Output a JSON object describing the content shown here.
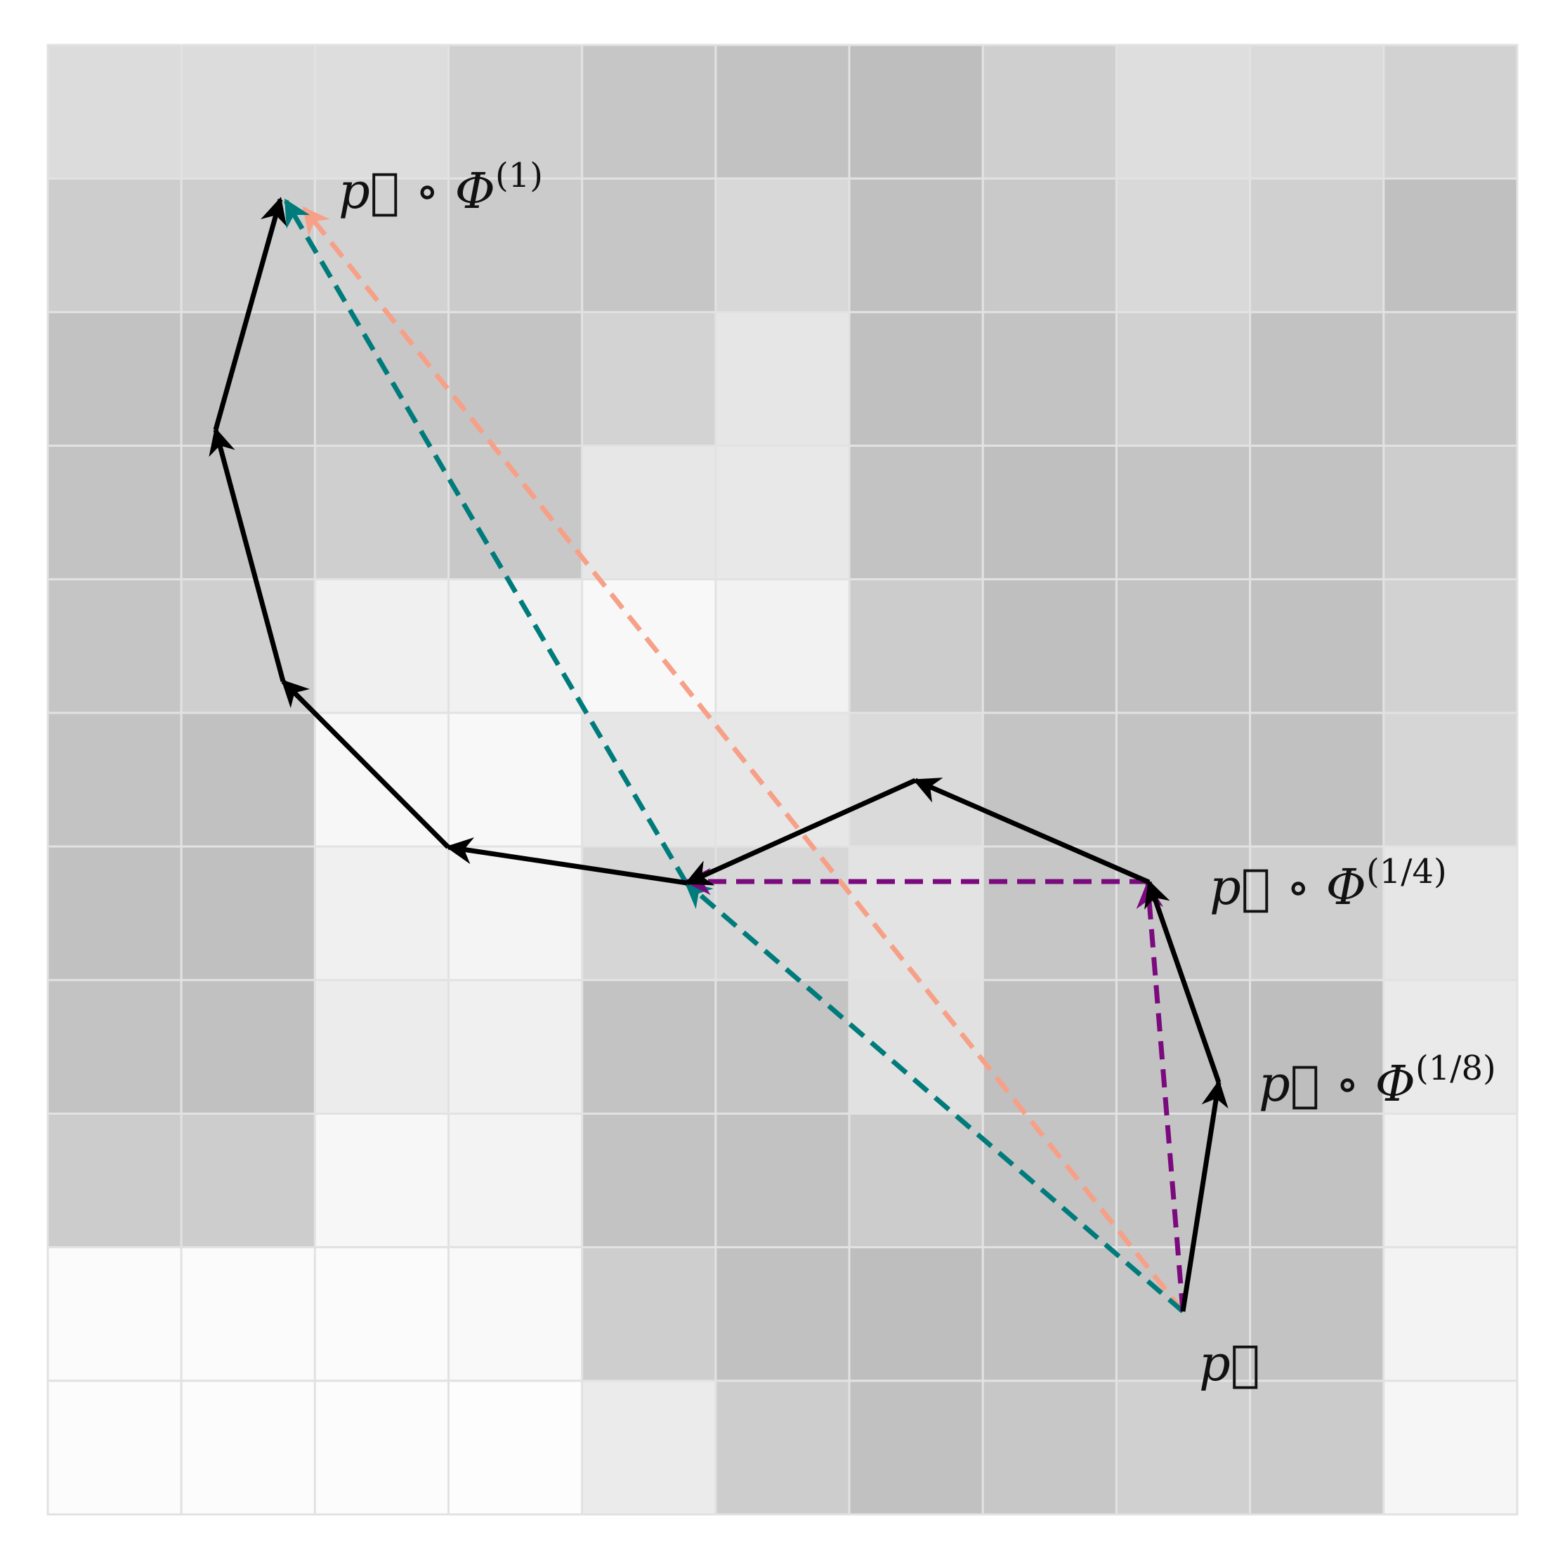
{
  "grid": {
    "rows": 11,
    "cols": 11,
    "line_color": "#e2e2e2",
    "shades": [
      [
        "#dcdcdc",
        "#dcdcdc",
        "#dddddd",
        "#d0d0d0",
        "#c6c6c6",
        "#c2c2c2",
        "#bebebe",
        "#cfcfcf",
        "#dedede",
        "#dadada",
        "#d2d2d2"
      ],
      [
        "#cdcdcd",
        "#cecece",
        "#d2d2d2",
        "#cbcbcb",
        "#c6c6c6",
        "#d8d8d8",
        "#c0c0c0",
        "#c9c9c9",
        "#d9d9d9",
        "#d0d0d0",
        "#c0c0c0"
      ],
      [
        "#c2c2c2",
        "#c1c1c1",
        "#c7c7c7",
        "#c4c4c4",
        "#d3d3d3",
        "#e6e6e6",
        "#c0c0c0",
        "#c3c3c3",
        "#d1d1d1",
        "#c2c2c2",
        "#c6c6c6"
      ],
      [
        "#c3c3c3",
        "#c5c5c5",
        "#cfcfcf",
        "#c8c8c8",
        "#e7e7e7",
        "#e8e8e8",
        "#c3c3c3",
        "#bfbfbf",
        "#c4c4c4",
        "#c2c2c2",
        "#cdcdcd"
      ],
      [
        "#c5c5c5",
        "#cfcfcf",
        "#f0f0f0",
        "#f1f1f1",
        "#f8f8f8",
        "#f2f2f2",
        "#cccccc",
        "#bfbfbf",
        "#c3c3c3",
        "#c1c1c1",
        "#d2d2d2"
      ],
      [
        "#c3c3c3",
        "#c1c1c1",
        "#f7f7f7",
        "#f8f8f8",
        "#e6e6e6",
        "#e7e7e7",
        "#dadada",
        "#c4c4c4",
        "#c3c3c3",
        "#c1c1c1",
        "#d6d6d6"
      ],
      [
        "#c1c1c1",
        "#c0c0c0",
        "#f0f0f0",
        "#f4f4f4",
        "#d6d6d6",
        "#d7d7d7",
        "#e3e3e3",
        "#c6c6c6",
        "#c8c8c8",
        "#cfcfcf",
        "#e6e6e6"
      ],
      [
        "#c3c3c3",
        "#c1c1c1",
        "#ececec",
        "#f0f0f0",
        "#c3c3c3",
        "#c4c4c4",
        "#e1e1e1",
        "#c0c0c0",
        "#c2c2c2",
        "#bebebe",
        "#eaeaea"
      ],
      [
        "#cccccc",
        "#cdcdcd",
        "#f7f7f7",
        "#f3f3f3",
        "#c3c3c3",
        "#c2c2c2",
        "#cccccc",
        "#c4c4c4",
        "#c4c4c4",
        "#c2c2c2",
        "#f1f1f1"
      ],
      [
        "#fbfbfb",
        "#fbfbfb",
        "#fbfbfb",
        "#f9f9f9",
        "#cecece",
        "#c1c1c1",
        "#bebebe",
        "#c1c1c1",
        "#c6c6c6",
        "#c3c3c3",
        "#f3f3f3"
      ],
      [
        "#fcfcfc",
        "#fcfcfc",
        "#fcfcfc",
        "#fdfdfd",
        "#ebebeb",
        "#cdcdcd",
        "#c1c1c1",
        "#c7c7c7",
        "#d0d0d0",
        "#cbcbcb",
        "#f6f6f6"
      ]
    ]
  },
  "colors": {
    "path": "#000000",
    "teal": "#007b7b",
    "salmon": "#f7a088",
    "purple": "#7a0a7e"
  },
  "labels": {
    "p": "p⃗",
    "phi1": {
      "base": "p⃗ ∘ Φ",
      "sup": "(1)"
    },
    "phi14": {
      "base": "p⃗ ∘ Φ",
      "sup": "(1/4)"
    },
    "phi18": {
      "base": "p⃗ ∘ Φ",
      "sup": "(1/8)"
    }
  }
}
